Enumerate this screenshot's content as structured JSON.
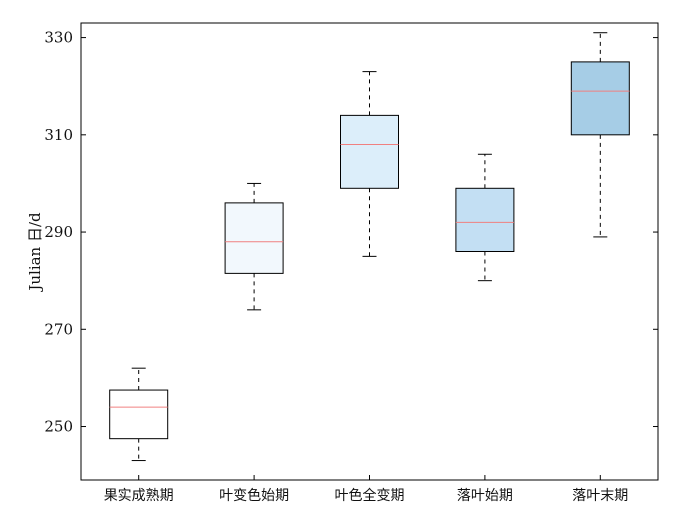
{
  "chart_data": {
    "type": "box",
    "ylabel": "Julian 日/d",
    "ylim": [
      239,
      333
    ],
    "yticks": [
      250,
      270,
      290,
      310,
      330
    ],
    "grid": false,
    "categories": [
      "果实成熟期",
      "叶变色始期",
      "叶色全变期",
      "落叶始期",
      "落叶末期"
    ],
    "boxes": [
      {
        "whisker_low": 243,
        "q1": 247.5,
        "median": 254,
        "q3": 257.5,
        "whisker_high": 262,
        "fill": "#ffffff"
      },
      {
        "whisker_low": 274,
        "q1": 281.5,
        "median": 288,
        "q3": 296,
        "whisker_high": 300,
        "fill": "#f2f8fd"
      },
      {
        "whisker_low": 285,
        "q1": 299,
        "median": 308,
        "q3": 314,
        "whisker_high": 323,
        "fill": "#dceefa"
      },
      {
        "whisker_low": 280,
        "q1": 286,
        "median": 292,
        "q3": 299,
        "whisker_high": 306,
        "fill": "#c3dff3"
      },
      {
        "whisker_low": 289,
        "q1": 310,
        "median": 319,
        "q3": 325,
        "whisker_high": 331,
        "fill": "#a6cde6"
      }
    ],
    "colors": {
      "median": "#f08080",
      "box_edge": "#000000",
      "whisker": "#000000",
      "frame": "#000000"
    }
  }
}
